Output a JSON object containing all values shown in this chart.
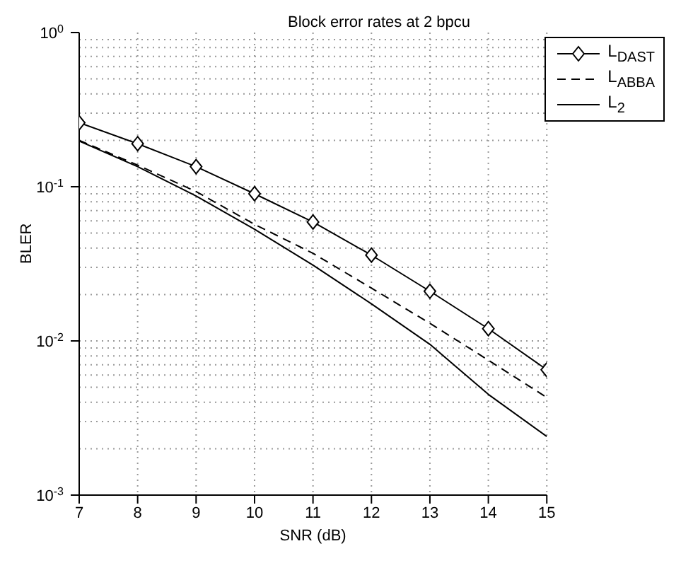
{
  "chart_data": {
    "type": "line",
    "title": "Block error rates at 2 bpcu",
    "xlabel": "SNR (dB)",
    "ylabel": "BLER",
    "log": "y",
    "grid": true,
    "legend": "top right",
    "x": [
      7,
      8,
      9,
      10,
      11,
      12,
      13,
      14,
      15
    ],
    "xlim": [
      7,
      15
    ],
    "xticks": [
      7,
      8,
      9,
      10,
      11,
      12,
      13,
      14,
      15
    ],
    "ylim": [
      0.001,
      1
    ],
    "yticks": [
      {
        "value": 0.001,
        "label": "10$^{-3}$"
      },
      {
        "value": 0.01,
        "label": "10$^{-2}$"
      },
      {
        "value": 0.1,
        "label": "10$^{-1}$"
      },
      {
        "value": 1,
        "label": "10$^{0}$"
      }
    ],
    "series": [
      {
        "name": "L$_{DAST}$",
        "color": "#000000",
        "marker": "diamond",
        "line_style": "solid",
        "values": [
          0.26,
          0.19,
          0.135,
          0.09,
          0.059,
          0.036,
          0.021,
          0.012,
          0.0065
        ]
      },
      {
        "name": "L$_{ABBA}$",
        "color": "#000000",
        "marker": "none",
        "line_style": "dashed",
        "values": [
          0.2,
          0.138,
          0.093,
          0.057,
          0.037,
          0.022,
          0.013,
          0.0075,
          0.0043
        ]
      },
      {
        "name": "L$_{2}$",
        "color": "#000000",
        "marker": "none",
        "line_style": "solid",
        "values": [
          0.198,
          0.135,
          0.087,
          0.053,
          0.031,
          0.0174,
          0.0095,
          0.0045,
          0.0024
        ]
      }
    ]
  }
}
